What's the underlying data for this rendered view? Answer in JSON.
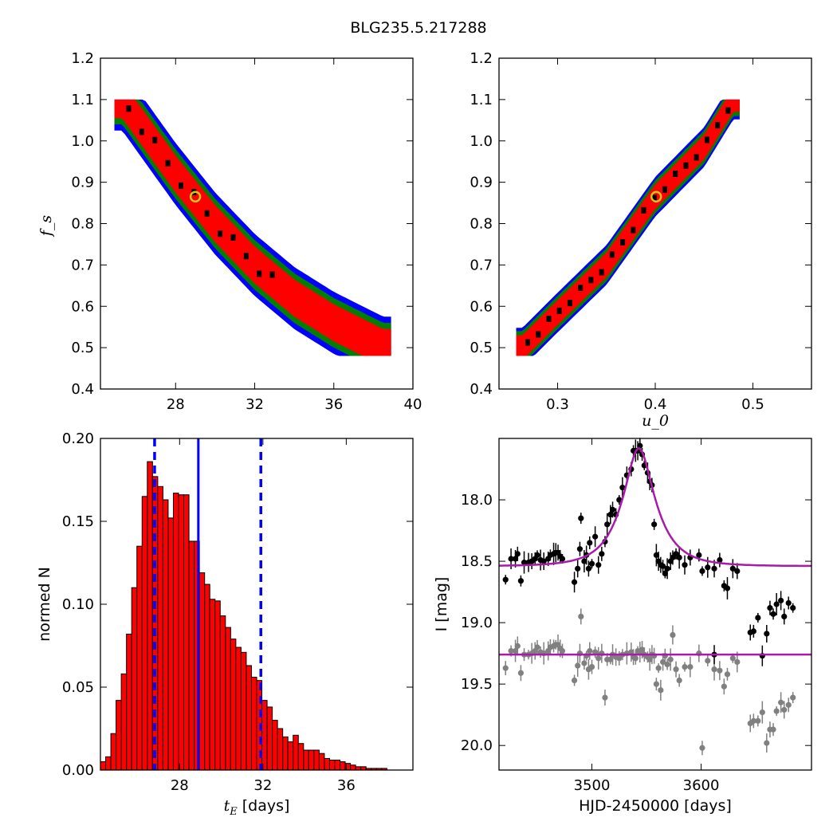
{
  "title": "BLG235.5.217288",
  "chart_data": [
    {
      "id": "panel-tE-fs",
      "type": "heatmap",
      "xlabel": "",
      "ylabel": "f_s",
      "xlim": [
        24.2,
        40
      ],
      "ylim": [
        0.4,
        1.2
      ],
      "xticks": [
        28,
        32,
        36,
        40
      ],
      "yticks": [
        0.4,
        0.5,
        0.6,
        0.7,
        0.8,
        0.9,
        1.0,
        1.1,
        1.2
      ],
      "tick_labels_y": [
        "0.4",
        "0.5",
        "0.6",
        "0.7",
        "0.8",
        "0.9",
        "1.0",
        "1.1",
        "1.2"
      ],
      "tick_labels_x": [
        "28",
        "32",
        "36",
        "40"
      ],
      "contour_levels": [
        "black (best)",
        "red (1σ)",
        "green (2σ)",
        "blue (3σ)"
      ],
      "level_colors": {
        "black": "#000000",
        "red": "#ff0000",
        "green": "#008000",
        "blue": "#0000ff"
      },
      "ridge": [
        [
          25.3,
          1.1
        ],
        [
          26.5,
          1.02
        ],
        [
          28.0,
          0.92
        ],
        [
          30.0,
          0.8
        ],
        [
          32.0,
          0.7
        ],
        [
          34.0,
          0.62
        ],
        [
          36.0,
          0.56
        ],
        [
          38.5,
          0.5
        ]
      ],
      "ridge_halfwidth": {
        "black": 0.02,
        "red": 0.045,
        "green": 0.06,
        "blue": 0.075
      },
      "best_fit": {
        "x": 29.0,
        "y": 0.865,
        "marker_color": "#c8c81e"
      }
    },
    {
      "id": "panel-u0-fs",
      "type": "heatmap",
      "xlabel": "u_0",
      "ylabel": "",
      "xlim": [
        0.24,
        0.56
      ],
      "ylim": [
        0.4,
        1.2
      ],
      "xticks": [
        0.3,
        0.4,
        0.5
      ],
      "yticks": [
        0.4,
        0.5,
        0.6,
        0.7,
        0.8,
        0.9,
        1.0,
        1.1,
        1.2
      ],
      "tick_labels_y": [
        "0.4",
        "0.5",
        "0.6",
        "0.7",
        "0.8",
        "0.9",
        "1.0",
        "1.1",
        "1.2"
      ],
      "tick_labels_x": [
        "0.3",
        "0.4",
        "0.5"
      ],
      "ridge": [
        [
          0.264,
          0.5
        ],
        [
          0.3,
          0.585
        ],
        [
          0.35,
          0.7
        ],
        [
          0.4,
          0.865
        ],
        [
          0.45,
          0.985
        ],
        [
          0.48,
          1.1
        ]
      ],
      "ridge_halfwidth": {
        "black": 0.01,
        "red": 0.03,
        "green": 0.04,
        "blue": 0.048
      },
      "best_fit": {
        "x": 0.401,
        "y": 0.865,
        "marker_color": "#c8c81e"
      }
    },
    {
      "id": "panel-histogram",
      "type": "bar",
      "xlabel": "t_E [days]",
      "ylabel": "normed N",
      "xlim": [
        24.2,
        39.2
      ],
      "ylim": [
        0.0,
        0.2
      ],
      "xticks": [
        28,
        32,
        36
      ],
      "yticks": [
        0.0,
        0.05,
        0.1,
        0.15,
        0.2
      ],
      "tick_labels_x": [
        "28",
        "32",
        "36"
      ],
      "tick_labels_y": [
        "0.00",
        "0.05",
        "0.10",
        "0.15",
        "0.20"
      ],
      "bin_start": 24.2,
      "bin_width": 0.25,
      "values": [
        0.005,
        0.008,
        0.022,
        0.042,
        0.058,
        0.082,
        0.11,
        0.135,
        0.165,
        0.186,
        0.177,
        0.171,
        0.163,
        0.152,
        0.167,
        0.166,
        0.166,
        0.138,
        0.138,
        0.119,
        0.112,
        0.103,
        0.102,
        0.093,
        0.086,
        0.079,
        0.074,
        0.071,
        0.063,
        0.056,
        0.054,
        0.042,
        0.038,
        0.03,
        0.025,
        0.02,
        0.017,
        0.021,
        0.016,
        0.012,
        0.012,
        0.012,
        0.01,
        0.007,
        0.006,
        0.006,
        0.005,
        0.004,
        0.003,
        0.002,
        0.002,
        0.001,
        0.001,
        0.001,
        0.001,
        0.0,
        0.0,
        0.0,
        0.0,
        0.0
      ],
      "bar_color": "#ff0000",
      "median_line": 28.9,
      "interval_lines": [
        26.8,
        31.9
      ],
      "line_color": "#0000ff"
    },
    {
      "id": "panel-lightcurve",
      "type": "scatter",
      "xlabel": "HJD-2450000 [days]",
      "ylabel": "I [mag]",
      "xlim": [
        3415,
        3701
      ],
      "ylim": [
        20.2,
        17.5
      ],
      "xticks": [
        3500,
        3600
      ],
      "yticks": [
        18.0,
        18.5,
        19.0,
        19.5,
        20.0
      ],
      "tick_labels_x": [
        "3500",
        "3600"
      ],
      "tick_labels_y": [
        "18.0",
        "18.5",
        "19.0",
        "19.5",
        "20.0"
      ],
      "model": {
        "t0": 3543,
        "tE": 28.9,
        "u0": 0.401,
        "base_mag": 18.54,
        "color": "#aa1aaa"
      },
      "residual_baseline": 19.26,
      "series": [
        {
          "marker_color": "#000000",
          "points": [
            [
              3421,
              18.65
            ],
            [
              3426,
              18.48
            ],
            [
              3430,
              18.48
            ],
            [
              3432,
              18.44
            ],
            [
              3435,
              18.66
            ],
            [
              3438,
              18.51
            ],
            [
              3442,
              18.51
            ],
            [
              3445,
              18.5
            ],
            [
              3448,
              18.48
            ],
            [
              3450,
              18.45
            ],
            [
              3453,
              18.49
            ],
            [
              3456,
              18.5
            ],
            [
              3460,
              18.48
            ],
            [
              3462,
              18.45
            ],
            [
              3465,
              18.44
            ],
            [
              3467,
              18.43
            ],
            [
              3469,
              18.43
            ],
            [
              3471,
              18.46
            ],
            [
              3473,
              18.48
            ],
            [
              3484,
              18.67
            ],
            [
              3487,
              18.56
            ],
            [
              3489,
              18.4
            ],
            [
              3490,
              18.15
            ],
            [
              3493,
              18.5
            ],
            [
              3495,
              18.45
            ],
            [
              3497,
              18.56
            ],
            [
              3498,
              18.35
            ],
            [
              3500,
              18.52
            ],
            [
              3503,
              18.3
            ],
            [
              3506,
              18.53
            ],
            [
              3509,
              18.44
            ],
            [
              3512,
              18.34
            ],
            [
              3514,
              18.2
            ],
            [
              3517,
              18.12
            ],
            [
              3519,
              18.08
            ],
            [
              3522,
              18.12
            ],
            [
              3525,
              18.0
            ],
            [
              3528,
              17.9
            ],
            [
              3532,
              17.8
            ],
            [
              3536,
              17.75
            ],
            [
              3538,
              17.6
            ],
            [
              3540,
              17.6
            ],
            [
              3542,
              17.6
            ],
            [
              3544,
              17.56
            ],
            [
              3546,
              17.63
            ],
            [
              3548,
              17.72
            ],
            [
              3551,
              17.78
            ],
            [
              3553,
              17.85
            ],
            [
              3555,
              17.88
            ],
            [
              3557,
              18.2
            ],
            [
              3559,
              18.45
            ],
            [
              3561,
              18.5
            ],
            [
              3563,
              18.53
            ],
            [
              3565,
              18.54
            ],
            [
              3567,
              18.6
            ],
            [
              3569,
              18.56
            ],
            [
              3572,
              18.5
            ],
            [
              3574,
              18.47
            ],
            [
              3577,
              18.44
            ],
            [
              3580,
              18.47
            ],
            [
              3585,
              18.53
            ],
            [
              3590,
              18.47
            ],
            [
              3598,
              18.45
            ],
            [
              3601,
              18.58
            ],
            [
              3606,
              18.55
            ],
            [
              3612,
              18.56
            ],
            [
              3617,
              18.49
            ],
            [
              3621,
              18.7
            ],
            [
              3624,
              18.72
            ],
            [
              3629,
              18.56
            ],
            [
              3633,
              18.58
            ]
          ]
        },
        {
          "marker_color": "#808080",
          "points": [
            [
              3421,
              19.37
            ],
            [
              3426,
              19.23
            ],
            [
              3430,
              19.23
            ],
            [
              3432,
              19.19
            ],
            [
              3435,
              19.41
            ],
            [
              3438,
              19.26
            ],
            [
              3442,
              19.26
            ],
            [
              3445,
              19.25
            ],
            [
              3448,
              19.23
            ],
            [
              3450,
              19.2
            ],
            [
              3453,
              19.24
            ],
            [
              3456,
              19.25
            ],
            [
              3460,
              19.23
            ],
            [
              3462,
              19.2
            ],
            [
              3465,
              19.19
            ],
            [
              3467,
              19.18
            ],
            [
              3469,
              19.18
            ],
            [
              3471,
              19.21
            ],
            [
              3473,
              19.23
            ],
            [
              3484,
              19.47
            ],
            [
              3487,
              19.35
            ],
            [
              3489,
              19.25
            ],
            [
              3490,
              18.95
            ],
            [
              3493,
              19.33
            ],
            [
              3495,
              19.27
            ],
            [
              3497,
              19.38
            ],
            [
              3498,
              19.23
            ],
            [
              3500,
              19.36
            ],
            [
              3503,
              19.24
            ],
            [
              3506,
              19.29
            ],
            [
              3509,
              19.25
            ],
            [
              3512,
              19.61
            ],
            [
              3514,
              19.3
            ],
            [
              3517,
              19.3
            ],
            [
              3519,
              19.26
            ],
            [
              3522,
              19.28
            ],
            [
              3525,
              19.29
            ],
            [
              3528,
              19.26
            ],
            [
              3532,
              19.25
            ],
            [
              3536,
              19.24
            ],
            [
              3538,
              19.28
            ],
            [
              3540,
              19.29
            ],
            [
              3542,
              19.23
            ],
            [
              3544,
              19.24
            ],
            [
              3546,
              19.22
            ],
            [
              3548,
              19.26
            ],
            [
              3551,
              19.28
            ],
            [
              3553,
              19.3
            ],
            [
              3555,
              19.26
            ],
            [
              3557,
              19.27
            ],
            [
              3559,
              19.5
            ],
            [
              3561,
              19.37
            ],
            [
              3563,
              19.55
            ],
            [
              3565,
              19.32
            ],
            [
              3567,
              19.27
            ],
            [
              3569,
              19.34
            ],
            [
              3572,
              19.3
            ],
            [
              3574,
              19.1
            ],
            [
              3577,
              19.38
            ],
            [
              3580,
              19.47
            ],
            [
              3585,
              19.36
            ],
            [
              3590,
              19.36
            ],
            [
              3598,
              19.25
            ],
            [
              3601,
              20.02
            ],
            [
              3606,
              19.31
            ],
            [
              3612,
              19.38
            ],
            [
              3617,
              19.39
            ],
            [
              3621,
              19.52
            ],
            [
              3624,
              19.42
            ],
            [
              3629,
              19.29
            ],
            [
              3633,
              19.32
            ],
            [
              3645,
              19.82
            ],
            [
              3648,
              19.8
            ],
            [
              3652,
              19.8
            ],
            [
              3656,
              19.73
            ],
            [
              3660,
              19.98
            ],
            [
              3663,
              19.87
            ],
            [
              3666,
              19.87
            ],
            [
              3669,
              19.72
            ],
            [
              3673,
              19.65
            ],
            [
              3676,
              19.71
            ],
            [
              3680,
              19.67
            ],
            [
              3684,
              19.61
            ]
          ]
        },
        {
          "marker_color": "#000000",
          "points": [
            [
              3612,
              19.26
            ],
            [
              3645,
              19.08
            ],
            [
              3648,
              19.07
            ],
            [
              3652,
              18.96
            ],
            [
              3656,
              19.27
            ],
            [
              3660,
              19.09
            ],
            [
              3663,
              18.88
            ],
            [
              3666,
              18.93
            ],
            [
              3669,
              18.85
            ],
            [
              3673,
              18.82
            ],
            [
              3676,
              18.95
            ],
            [
              3680,
              18.84
            ],
            [
              3684,
              18.88
            ]
          ]
        }
      ]
    }
  ]
}
